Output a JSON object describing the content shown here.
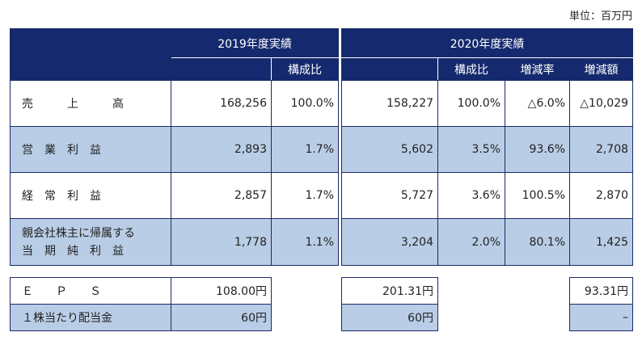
{
  "unit_note": "単位：百万円",
  "header": {
    "fy2019": "2019年度実績",
    "fy2020": "2020年度実績",
    "sub2019": [
      "構成比"
    ],
    "sub2020": [
      "構成比",
      "増減率",
      "増減額"
    ]
  },
  "rows": [
    {
      "label": "売　　　上　　　高",
      "v2019": "168,256",
      "r2019": "100.0%",
      "v2020": "158,227",
      "r2020": "100.0%",
      "rate": "△6.0%",
      "diff": "△10,029"
    },
    {
      "label": "営　業　利　益",
      "v2019": "2,893",
      "r2019": "1.7%",
      "v2020": "5,602",
      "r2020": "3.5%",
      "rate": "93.6%",
      "diff": "2,708"
    },
    {
      "label": "経　常　利　益",
      "v2019": "2,857",
      "r2019": "1.7%",
      "v2020": "5,727",
      "r2020": "3.6%",
      "rate": "100.5%",
      "diff": "2,870"
    },
    {
      "label_line1": "親会社株主に帰属する",
      "label_line2": "当　期　純　利　益",
      "v2019": "1,778",
      "r2019": "1.1%",
      "v2020": "3,204",
      "r2020": "2.0%",
      "rate": "80.1%",
      "diff": "1,425"
    }
  ],
  "bottom": [
    {
      "label": "Ｅ　　Ｐ　　Ｓ",
      "v2019": "108.00円",
      "v2020": "201.31円",
      "diff": "93.31円"
    },
    {
      "label": "１株当たり配当金",
      "v2019": "60円",
      "v2020": "60円",
      "diff": "–"
    }
  ]
}
